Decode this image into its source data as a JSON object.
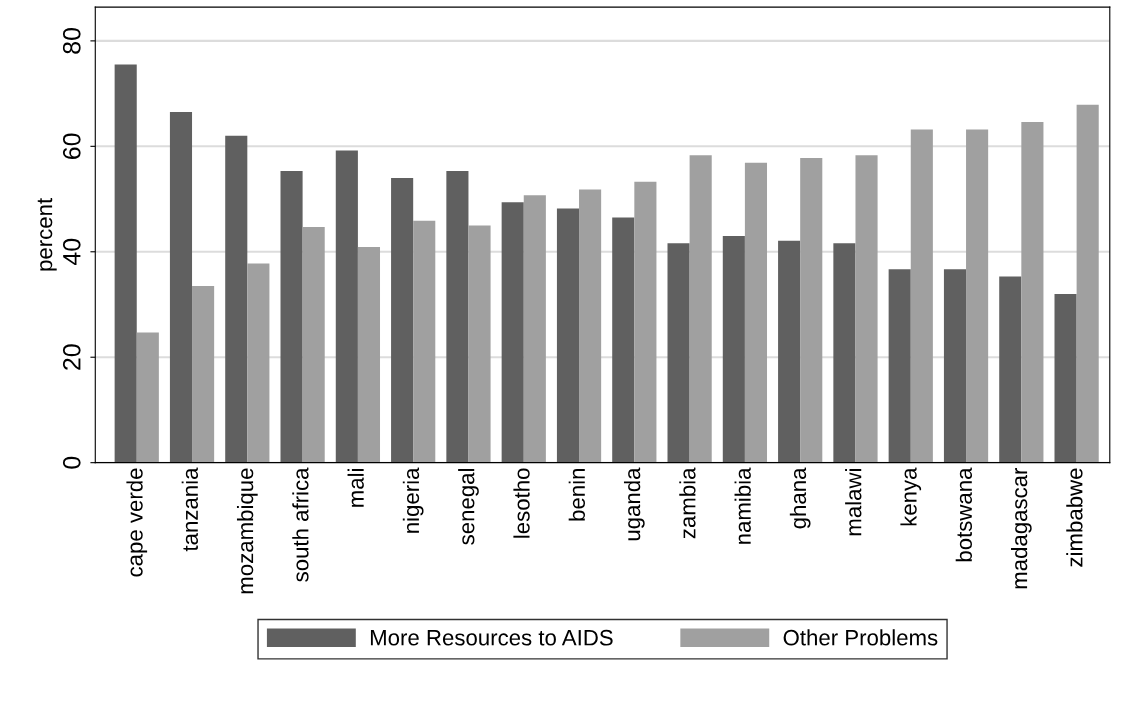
{
  "chart_data": {
    "type": "bar",
    "ylabel": "percent",
    "categories": [
      "cape verde",
      "tanzania",
      "mozambique",
      "south africa",
      "mali",
      "nigeria",
      "senegal",
      "lesotho",
      "benin",
      "uganda",
      "zambia",
      "namibia",
      "ghana",
      "malawi",
      "kenya",
      "botswana",
      "madagascar",
      "zimbabwe"
    ],
    "series": [
      {
        "name": "More Resources to AIDS",
        "color": "#606060",
        "values": [
          75.5,
          66.5,
          62,
          55.3,
          59.2,
          54,
          55.3,
          49.4,
          48.2,
          46.5,
          41.6,
          43,
          42.1,
          41.6,
          36.7,
          36.7,
          35.3,
          32
        ]
      },
      {
        "name": "Other Problems",
        "color": "#a0a0a0",
        "values": [
          24.7,
          33.5,
          37.8,
          44.7,
          40.9,
          45.9,
          45,
          50.7,
          51.8,
          53.3,
          58.3,
          56.9,
          57.8,
          58.3,
          63.2,
          63.2,
          64.6,
          67.9
        ]
      }
    ],
    "ylim": [
      0,
      86.4
    ],
    "yticks": [
      0,
      20,
      40,
      60,
      80
    ],
    "grid": "y",
    "legend": "bottom"
  }
}
